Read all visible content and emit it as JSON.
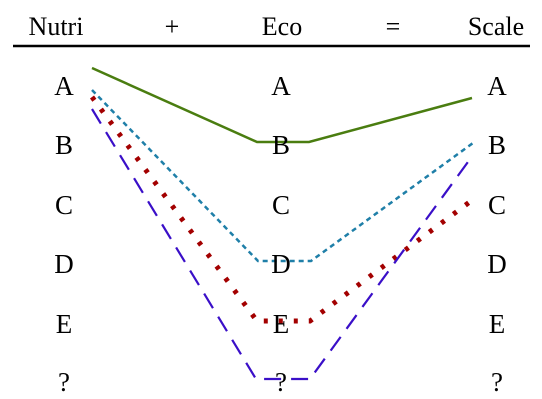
{
  "header": {
    "term_left": "Nutri",
    "plus": "+",
    "term_mid": "Eco",
    "equals": "=",
    "term_right": "Scale"
  },
  "columns": [
    {
      "name": "Nutri",
      "grades": [
        "A",
        "B",
        "C",
        "D",
        "E",
        "?"
      ]
    },
    {
      "name": "Eco",
      "grades": [
        "A",
        "B",
        "C",
        "D",
        "E",
        "?"
      ]
    },
    {
      "name": "Scale",
      "grades": [
        "A",
        "B",
        "C",
        "D",
        "E",
        "?"
      ]
    }
  ],
  "paths": [
    {
      "id": "A-B-A",
      "from": "A",
      "via": "B",
      "to": "A",
      "color": "#4a7d10",
      "style": "solid"
    },
    {
      "id": "A-D-B",
      "from": "A",
      "via": "D",
      "to": "B",
      "color": "#1f7fa8",
      "style": "dashed"
    },
    {
      "id": "A-E-C",
      "from": "A",
      "via": "E",
      "to": "C",
      "color": "#a30000",
      "style": "dotted"
    },
    {
      "id": "A-?-B",
      "from": "A",
      "via": "?",
      "to": "B",
      "color": "#3a0fc8",
      "style": "long-dash"
    }
  ]
}
